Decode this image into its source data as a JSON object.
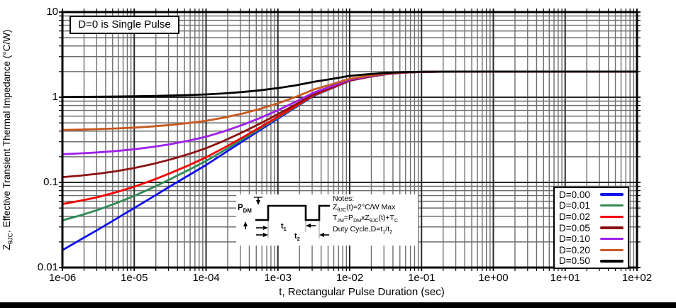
{
  "chart_data": {
    "type": "line",
    "title": "",
    "xlabel": "t, Rectangular Pulse Duration (sec)",
    "ylabel_segments": [
      [
        "t",
        "Z"
      ],
      [
        "s",
        "θJC"
      ],
      [
        "t",
        ", Effective Transient Thermal Impedance (°C/W)"
      ]
    ],
    "x_scale": "log",
    "y_scale": "log",
    "xlim": [
      1e-06,
      100
    ],
    "ylim": [
      0.01,
      10
    ],
    "grid": true,
    "legend_position": "bottom-right",
    "annotation": "D=0 is Single Pulse",
    "x_tick_labels": [
      "1e-06",
      "1e-05",
      "1e-04",
      "1e-03",
      "1e-02",
      "1e-01",
      "1e+00",
      "1e+01",
      "1e+02"
    ],
    "y_ticks": [
      {
        "label": "10",
        "value": 10
      },
      {
        "label": "1",
        "value": 1
      },
      {
        "label": "0.1",
        "value": 0.1
      },
      {
        "label": "0.01",
        "value": 0.01
      }
    ],
    "log10_x": [
      -6,
      -5.75,
      -5.5,
      -5.25,
      -5,
      -4.75,
      -4.5,
      -4.25,
      -4,
      -3.75,
      -3.5,
      -3.25,
      -3,
      -2.75,
      -2.5,
      -2.25,
      -2,
      -1.75,
      -1.5,
      -1.25,
      -1,
      -0.75,
      -0.5,
      0,
      0.5,
      1,
      1.5,
      2
    ],
    "series": [
      {
        "name": "D=0.00",
        "duty_cycle": 0.0,
        "color": "#1010EE",
        "values": [
          0.016,
          0.0212,
          0.028,
          0.0374,
          0.05,
          0.067,
          0.09,
          0.12,
          0.16,
          0.219,
          0.3,
          0.41,
          0.56,
          0.763,
          1.04,
          1.274,
          1.56,
          1.722,
          1.86,
          1.94,
          1.98,
          1.992,
          1.998,
          2,
          2,
          2,
          2,
          2
        ]
      },
      {
        "name": "D=0.01",
        "duty_cycle": 0.01,
        "color": "#2E8B57",
        "values": [
          0.0358,
          0.041,
          0.0477,
          0.057,
          0.0695,
          0.0863,
          0.1091,
          0.1388,
          0.1784,
          0.2368,
          0.317,
          0.4259,
          0.5744,
          0.7754,
          1.0496,
          1.2813,
          1.5644,
          1.7248,
          1.8614,
          1.9406,
          1.9802,
          1.9921,
          1.998,
          2,
          2,
          2,
          2,
          2
        ]
      },
      {
        "name": "D=0.02",
        "duty_cycle": 0.02,
        "color": "#F40000",
        "values": [
          0.0557,
          0.0608,
          0.0674,
          0.0767,
          0.089,
          0.1057,
          0.1282,
          0.1576,
          0.1968,
          0.2546,
          0.334,
          0.4418,
          0.5888,
          0.7877,
          1.0592,
          1.2885,
          1.5688,
          1.7276,
          1.8628,
          1.9412,
          1.9804,
          1.9922,
          1.998,
          2,
          2,
          2,
          2,
          2
        ]
      },
      {
        "name": "D=0.05",
        "duty_cycle": 0.05,
        "color": "#8B1212",
        "values": [
          0.1152,
          0.1201,
          0.1266,
          0.1355,
          0.1475,
          0.1637,
          0.1855,
          0.214,
          0.252,
          0.3081,
          0.385,
          0.4895,
          0.632,
          0.8249,
          1.088,
          1.3103,
          1.582,
          1.7359,
          1.867,
          1.943,
          1.981,
          1.9924,
          1.9981,
          2,
          2,
          2,
          2,
          2
        ]
      },
      {
        "name": "D=0.10",
        "duty_cycle": 0.1,
        "color": "#A020E8",
        "values": [
          0.2144,
          0.2191,
          0.2252,
          0.2337,
          0.245,
          0.2603,
          0.281,
          0.308,
          0.344,
          0.3971,
          0.47,
          0.569,
          0.704,
          0.8867,
          1.136,
          1.3466,
          1.604,
          1.7498,
          1.874,
          1.946,
          1.982,
          1.9928,
          1.9982,
          2,
          2,
          2,
          2,
          2
        ]
      },
      {
        "name": "D=0.20",
        "duty_cycle": 0.2,
        "color": "#C8581E",
        "values": [
          0.4128,
          0.417,
          0.4224,
          0.4299,
          0.44,
          0.4536,
          0.472,
          0.496,
          0.528,
          0.5752,
          0.64,
          0.728,
          0.848,
          1.0104,
          1.232,
          1.4192,
          1.648,
          1.7776,
          1.888,
          1.952,
          1.984,
          1.9936,
          1.9984,
          2,
          2,
          2,
          2,
          2
        ]
      },
      {
        "name": "D=0.50",
        "duty_cycle": 0.5,
        "color": "#000000",
        "values": [
          1.008,
          1.0106,
          1.014,
          1.0187,
          1.025,
          1.0335,
          1.045,
          1.06,
          1.08,
          1.1095,
          1.15,
          1.205,
          1.28,
          1.3815,
          1.52,
          1.637,
          1.78,
          1.861,
          1.93,
          1.97,
          1.99,
          1.996,
          1.999,
          2,
          2,
          2,
          2,
          2
        ]
      }
    ],
    "steady_state_value": 2.0
  },
  "inset": {
    "pdm_segments": [
      [
        "t",
        "P"
      ],
      [
        "s",
        "DM"
      ]
    ],
    "t1_segments": [
      [
        "t",
        "t"
      ],
      [
        "s",
        "1"
      ]
    ],
    "t2_segments": [
      [
        "t",
        "t"
      ],
      [
        "s",
        "2"
      ]
    ],
    "notes_title": "Notes:",
    "note1_segments": [
      [
        "t",
        "Z"
      ],
      [
        "s",
        "θJC"
      ],
      [
        "t",
        "(t)=2°C/W Max"
      ]
    ],
    "note2_segments": [
      [
        "t",
        "T"
      ],
      [
        "s",
        "JM"
      ],
      [
        "t",
        "=P"
      ],
      [
        "s",
        "DM"
      ],
      [
        "t",
        "xZ"
      ],
      [
        "s",
        "θJC"
      ],
      [
        "t",
        "(t)+T"
      ],
      [
        "s",
        "C"
      ]
    ],
    "note3_segments": [
      [
        "t",
        "Duty Cycle,D=t"
      ],
      [
        "s",
        "1"
      ],
      [
        "t",
        "/t"
      ],
      [
        "s",
        "2"
      ]
    ]
  },
  "colors": {
    "grid_major": "#2b2b2b",
    "grid_minor": "#6e6e6e",
    "border": "#000000",
    "footer_bar": "#000000",
    "background": "#ffffff"
  }
}
